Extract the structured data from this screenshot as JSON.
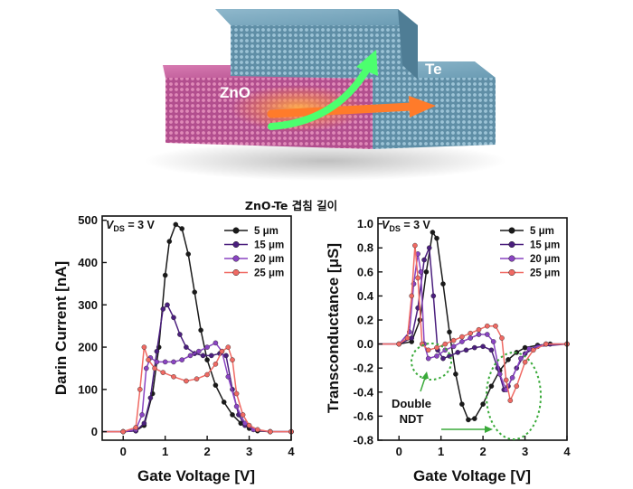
{
  "illustration": {
    "labels": [
      "ZnO",
      "Te"
    ],
    "colors": {
      "zno": "#c0589a",
      "te": "#6f9fb6",
      "arrow_orange": "#ff7b2a",
      "arrow_green": "#4cff6e"
    }
  },
  "overlap_title": "ZnO-Te 겹침 길이",
  "condition": {
    "prefix": "V",
    "subscript": "DS",
    "suffix": " = 3 V"
  },
  "legend": [
    {
      "label": "5 μm",
      "color": "#1a1a1a"
    },
    {
      "label": "15 μm",
      "color": "#4b1f7e"
    },
    {
      "label": "20 μm",
      "color": "#8a44c2"
    },
    {
      "label": "25 μm",
      "color": "#f06a64"
    }
  ],
  "annotation": {
    "line1": "Double",
    "line2": "NDT",
    "color": "#3aaa3a"
  },
  "chart_data": [
    {
      "type": "line",
      "xlabel": "Gate Voltage [V]",
      "ylabel": "Darin Current [nA]",
      "xlim": [
        -0.5,
        4
      ],
      "ylim": [
        -20,
        510
      ],
      "xticks": [
        0,
        1,
        2,
        3,
        4
      ],
      "yticks": [
        0,
        100,
        200,
        300,
        400,
        500
      ],
      "xtick_labels": [
        "0",
        "1",
        "2",
        "3",
        "4"
      ],
      "ytick_labels": [
        "0",
        "100",
        "200",
        "300",
        "400",
        "500"
      ],
      "series": [
        {
          "name": "5 μm",
          "color": "#1a1a1a",
          "points": [
            [
              -0.5,
              0
            ],
            [
              0,
              0
            ],
            [
              0.3,
              2
            ],
            [
              0.5,
              15
            ],
            [
              0.7,
              90
            ],
            [
              0.85,
              200
            ],
            [
              1,
              370
            ],
            [
              1.1,
              450
            ],
            [
              1.25,
              490
            ],
            [
              1.4,
              480
            ],
            [
              1.55,
              420
            ],
            [
              1.7,
              330
            ],
            [
              1.85,
              240
            ],
            [
              2,
              170
            ],
            [
              2.2,
              110
            ],
            [
              2.4,
              70
            ],
            [
              2.6,
              40
            ],
            [
              2.8,
              20
            ],
            [
              3,
              8
            ],
            [
              3.2,
              2
            ],
            [
              3.5,
              0
            ],
            [
              4,
              0
            ]
          ]
        },
        {
          "name": "15 μm",
          "color": "#4b1f7e",
          "points": [
            [
              -0.5,
              0
            ],
            [
              0,
              0
            ],
            [
              0.3,
              2
            ],
            [
              0.5,
              20
            ],
            [
              0.65,
              80
            ],
            [
              0.8,
              190
            ],
            [
              0.95,
              290
            ],
            [
              1.05,
              300
            ],
            [
              1.2,
              270
            ],
            [
              1.35,
              230
            ],
            [
              1.5,
              200
            ],
            [
              1.7,
              185
            ],
            [
              1.9,
              180
            ],
            [
              2.1,
              180
            ],
            [
              2.3,
              185
            ],
            [
              2.45,
              180
            ],
            [
              2.6,
              100
            ],
            [
              2.75,
              40
            ],
            [
              2.9,
              15
            ],
            [
              3.1,
              5
            ],
            [
              3.5,
              0
            ],
            [
              4,
              0
            ]
          ]
        },
        {
          "name": "20 μm",
          "color": "#8a44c2",
          "points": [
            [
              -0.5,
              0
            ],
            [
              0,
              0
            ],
            [
              0.3,
              5
            ],
            [
              0.45,
              40
            ],
            [
              0.55,
              150
            ],
            [
              0.65,
              175
            ],
            [
              0.8,
              165
            ],
            [
              1,
              165
            ],
            [
              1.2,
              165
            ],
            [
              1.4,
              170
            ],
            [
              1.6,
              180
            ],
            [
              1.8,
              190
            ],
            [
              2,
              200
            ],
            [
              2.2,
              210
            ],
            [
              2.35,
              190
            ],
            [
              2.5,
              130
            ],
            [
              2.7,
              60
            ],
            [
              2.9,
              20
            ],
            [
              3.1,
              5
            ],
            [
              3.5,
              0
            ],
            [
              4,
              0
            ]
          ]
        },
        {
          "name": "25 μm",
          "color": "#f06a64",
          "points": [
            [
              -0.5,
              0
            ],
            [
              0,
              0
            ],
            [
              0.3,
              10
            ],
            [
              0.4,
              100
            ],
            [
              0.5,
              200
            ],
            [
              0.6,
              170
            ],
            [
              0.75,
              150
            ],
            [
              0.95,
              140
            ],
            [
              1.2,
              130
            ],
            [
              1.5,
              120
            ],
            [
              1.75,
              125
            ],
            [
              2,
              135
            ],
            [
              2.2,
              160
            ],
            [
              2.35,
              190
            ],
            [
              2.5,
              200
            ],
            [
              2.6,
              170
            ],
            [
              2.7,
              90
            ],
            [
              2.85,
              40
            ],
            [
              3,
              15
            ],
            [
              3.2,
              5
            ],
            [
              3.5,
              0
            ],
            [
              4,
              0
            ]
          ]
        }
      ]
    },
    {
      "type": "line",
      "xlabel": "Gate Voltage [V]",
      "ylabel": "Transconductance [μS]",
      "xlim": [
        -0.5,
        4
      ],
      "ylim": [
        -0.8,
        1.05
      ],
      "xticks": [
        0,
        1,
        2,
        3,
        4
      ],
      "yticks": [
        -0.8,
        -0.6,
        -0.4,
        -0.2,
        0,
        0.2,
        0.4,
        0.6,
        0.8,
        1
      ],
      "xtick_labels": [
        "0",
        "1",
        "2",
        "3",
        "4"
      ],
      "ytick_labels": [
        "-0.8",
        "-0.6",
        "-0.4",
        "-0.2",
        "0.0",
        "0.2",
        "0.4",
        "0.6",
        "0.8",
        "1.0"
      ],
      "series": [
        {
          "name": "5 μm",
          "color": "#1a1a1a",
          "points": [
            [
              -0.5,
              0
            ],
            [
              0,
              0
            ],
            [
              0.3,
              0.02
            ],
            [
              0.5,
              0.2
            ],
            [
              0.65,
              0.6
            ],
            [
              0.8,
              0.93
            ],
            [
              0.9,
              0.88
            ],
            [
              1.05,
              0.5
            ],
            [
              1.2,
              0.1
            ],
            [
              1.35,
              -0.25
            ],
            [
              1.5,
              -0.5
            ],
            [
              1.65,
              -0.63
            ],
            [
              1.8,
              -0.62
            ],
            [
              2,
              -0.5
            ],
            [
              2.2,
              -0.35
            ],
            [
              2.4,
              -0.22
            ],
            [
              2.6,
              -0.13
            ],
            [
              2.8,
              -0.07
            ],
            [
              3,
              -0.03
            ],
            [
              3.3,
              -0.01
            ],
            [
              3.6,
              0
            ],
            [
              4,
              0
            ]
          ]
        },
        {
          "name": "15 μm",
          "color": "#4b1f7e",
          "points": [
            [
              -0.5,
              0
            ],
            [
              0,
              0
            ],
            [
              0.3,
              0.05
            ],
            [
              0.45,
              0.3
            ],
            [
              0.6,
              0.7
            ],
            [
              0.72,
              0.8
            ],
            [
              0.82,
              0.4
            ],
            [
              0.92,
              -0.05
            ],
            [
              1.05,
              -0.12
            ],
            [
              1.2,
              -0.1
            ],
            [
              1.4,
              -0.07
            ],
            [
              1.6,
              -0.05
            ],
            [
              1.8,
              -0.03
            ],
            [
              2,
              -0.02
            ],
            [
              2.2,
              -0.05
            ],
            [
              2.35,
              -0.2
            ],
            [
              2.5,
              -0.38
            ],
            [
              2.6,
              -0.35
            ],
            [
              2.8,
              -0.2
            ],
            [
              3,
              -0.08
            ],
            [
              3.3,
              -0.02
            ],
            [
              4,
              0
            ]
          ]
        },
        {
          "name": "20 μm",
          "color": "#8a44c2",
          "points": [
            [
              -0.5,
              0
            ],
            [
              0,
              0
            ],
            [
              0.25,
              0.1
            ],
            [
              0.35,
              0.5
            ],
            [
              0.45,
              0.75
            ],
            [
              0.52,
              0.6
            ],
            [
              0.6,
              0
            ],
            [
              0.7,
              -0.12
            ],
            [
              0.9,
              -0.1
            ],
            [
              1.1,
              -0.05
            ],
            [
              1.3,
              -0.02
            ],
            [
              1.5,
              0.02
            ],
            [
              1.7,
              0.05
            ],
            [
              1.9,
              0.08
            ],
            [
              2.1,
              0.08
            ],
            [
              2.25,
              0.02
            ],
            [
              2.4,
              -0.25
            ],
            [
              2.55,
              -0.38
            ],
            [
              2.7,
              -0.28
            ],
            [
              2.9,
              -0.12
            ],
            [
              3.1,
              -0.04
            ],
            [
              3.5,
              0
            ],
            [
              4,
              0
            ]
          ]
        },
        {
          "name": "25 μm",
          "color": "#f06a64",
          "points": [
            [
              -0.5,
              0
            ],
            [
              0,
              0
            ],
            [
              0.2,
              0.05
            ],
            [
              0.3,
              0.4
            ],
            [
              0.38,
              0.82
            ],
            [
              0.45,
              0.55
            ],
            [
              0.55,
              0
            ],
            [
              0.7,
              -0.05
            ],
            [
              0.9,
              -0.03
            ],
            [
              1.1,
              0
            ],
            [
              1.3,
              0.03
            ],
            [
              1.5,
              0.06
            ],
            [
              1.7,
              0.09
            ],
            [
              1.9,
              0.12
            ],
            [
              2.1,
              0.15
            ],
            [
              2.3,
              0.15
            ],
            [
              2.45,
              0.05
            ],
            [
              2.55,
              -0.3
            ],
            [
              2.65,
              -0.47
            ],
            [
              2.8,
              -0.35
            ],
            [
              3,
              -0.15
            ],
            [
              3.2,
              -0.05
            ],
            [
              3.5,
              0
            ],
            [
              4,
              0
            ]
          ]
        }
      ]
    }
  ]
}
